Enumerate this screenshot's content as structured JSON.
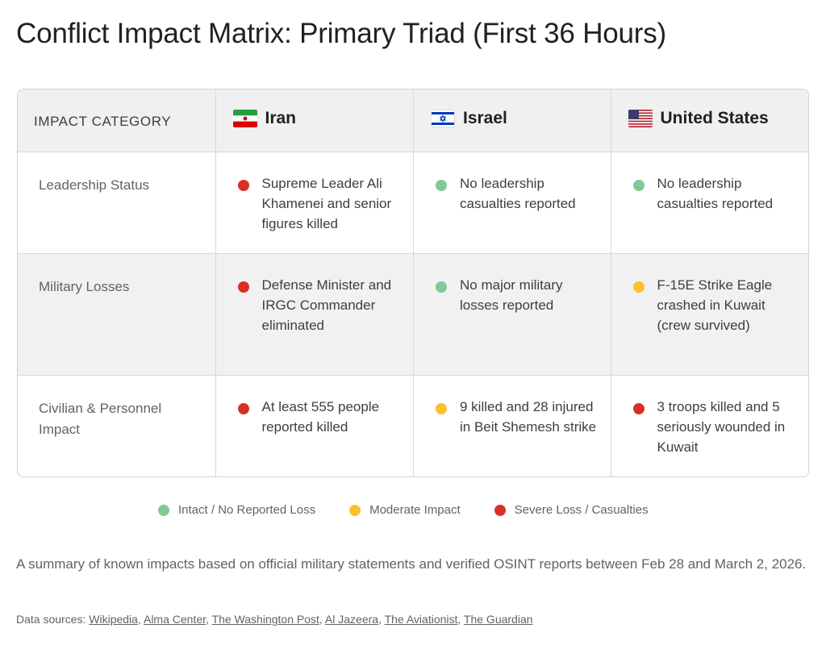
{
  "title": "Conflict Impact Matrix: Primary Triad (First 36 Hours)",
  "table": {
    "header": {
      "category_label": "IMPACT CATEGORY",
      "countries": [
        {
          "name": "Iran",
          "flag": "flag-iran-icon"
        },
        {
          "name": "Israel",
          "flag": "flag-israel-icon"
        },
        {
          "name": "United States",
          "flag": "flag-united-states-icon"
        }
      ]
    },
    "rows": [
      {
        "category": "Leadership Status",
        "cells": [
          {
            "status": "severe",
            "color": "#d93025",
            "text": "Supreme Leader Ali Khamenei and senior figures killed"
          },
          {
            "status": "intact",
            "color": "#81c995",
            "text": "No leadership casualties reported"
          },
          {
            "status": "intact",
            "color": "#81c995",
            "text": "No leadership casualties reported"
          }
        ]
      },
      {
        "category": "Military Losses",
        "cells": [
          {
            "status": "severe",
            "color": "#d93025",
            "text": "Defense Minister and IRGC Commander eliminated"
          },
          {
            "status": "intact",
            "color": "#81c995",
            "text": "No major military losses reported"
          },
          {
            "status": "moderate",
            "color": "#fbc02d",
            "text": "F-15E Strike Eagle crashed in Kuwait (crew survived)"
          }
        ]
      },
      {
        "category": "Civilian & Personnel Impact",
        "cells": [
          {
            "status": "severe",
            "color": "#d93025",
            "text": "At least 555 people reported killed"
          },
          {
            "status": "moderate",
            "color": "#fbc02d",
            "text": "9 killed and 28 injured in Beit Shemesh strike"
          },
          {
            "status": "severe",
            "color": "#d93025",
            "text": "3 troops killed and 5 seriously wounded in Kuwait"
          }
        ]
      }
    ]
  },
  "legend": [
    {
      "label": "Intact / No Reported Loss",
      "color": "#81c995"
    },
    {
      "label": "Moderate Impact",
      "color": "#fbc02d"
    },
    {
      "label": "Severe Loss / Casualties",
      "color": "#d93025"
    }
  ],
  "summary": "A summary of known impacts based on official military statements and verified OSINT reports between Feb 28 and March 2, 2026.",
  "sources": {
    "prefix": "Data sources:",
    "links": [
      "Wikipedia",
      "Alma Center",
      "The Washington Post",
      "Al Jazeera",
      "The Aviationist",
      "The Guardian"
    ]
  }
}
